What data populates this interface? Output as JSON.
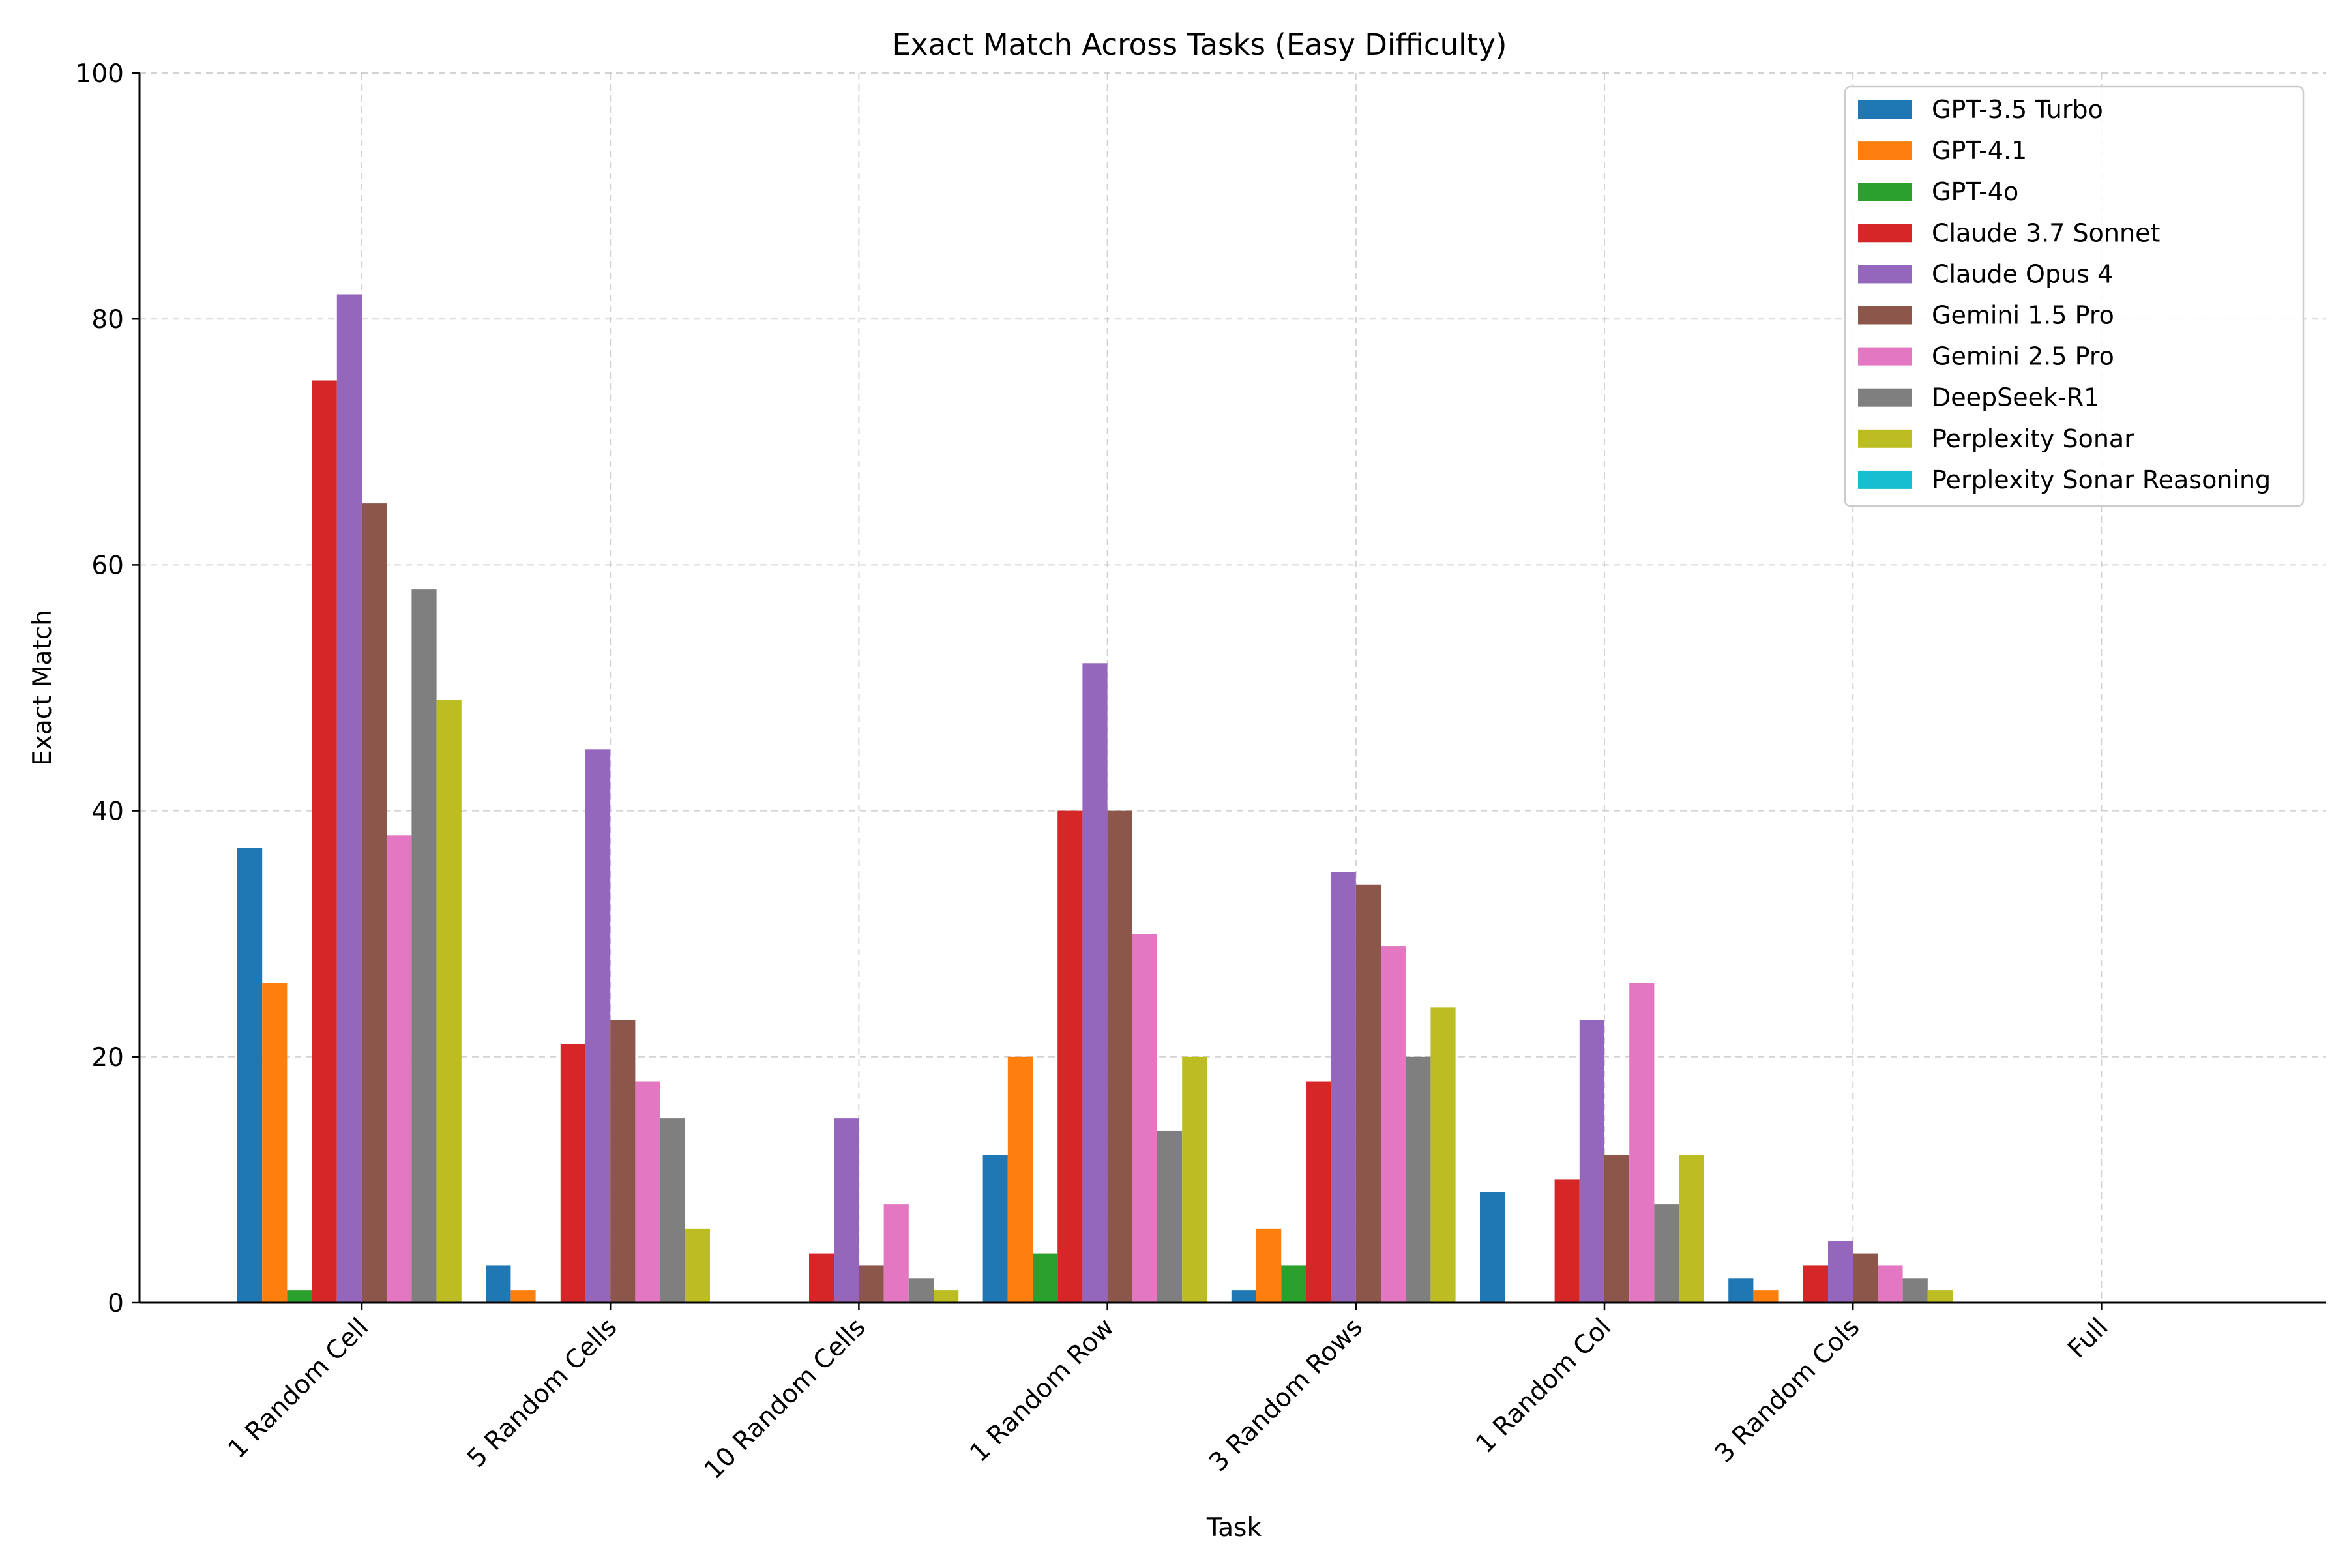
{
  "chart_data": {
    "type": "bar",
    "title": "Exact Match Across Tasks (Easy Difficulty)",
    "xlabel": "Task",
    "ylabel": "Exact Match",
    "ylim": [
      0,
      100
    ],
    "yticks": [
      "0",
      "20",
      "40",
      "60",
      "80",
      "100"
    ],
    "grid": true,
    "legend_position": "top-right",
    "categories": [
      "1 Random Cell",
      "5 Random Cells",
      "10 Random Cells",
      "1 Random Row",
      "3 Random Rows",
      "1 Random Col",
      "3 Random Cols",
      "Full"
    ],
    "series": [
      {
        "name": "GPT-3.5 Turbo",
        "color": "#1f77b4",
        "values": [
          37,
          3,
          0,
          12,
          1,
          9,
          2,
          0
        ]
      },
      {
        "name": "GPT-4.1",
        "color": "#ff7f0e",
        "values": [
          26,
          1,
          0,
          20,
          6,
          0,
          1,
          0
        ]
      },
      {
        "name": "GPT-4o",
        "color": "#2ca02c",
        "values": [
          1,
          0,
          0,
          4,
          3,
          0,
          0,
          0
        ]
      },
      {
        "name": "Claude 3.7 Sonnet",
        "color": "#d62728",
        "values": [
          75,
          21,
          4,
          40,
          18,
          10,
          3,
          0
        ]
      },
      {
        "name": "Claude Opus 4",
        "color": "#9467bd",
        "values": [
          82,
          45,
          15,
          52,
          35,
          23,
          5,
          0
        ]
      },
      {
        "name": "Gemini 1.5 Pro",
        "color": "#8c564b",
        "values": [
          65,
          23,
          3,
          40,
          34,
          12,
          4,
          0
        ]
      },
      {
        "name": "Gemini 2.5 Pro",
        "color": "#e377c2",
        "values": [
          38,
          18,
          8,
          30,
          29,
          26,
          3,
          0
        ]
      },
      {
        "name": "DeepSeek-R1",
        "color": "#7f7f7f",
        "values": [
          58,
          15,
          2,
          14,
          20,
          8,
          2,
          0
        ]
      },
      {
        "name": "Perplexity Sonar",
        "color": "#bcbd22",
        "values": [
          49,
          6,
          1,
          20,
          24,
          12,
          1,
          0
        ]
      },
      {
        "name": "Perplexity Sonar Reasoning",
        "color": "#17becf",
        "values": [
          0,
          0,
          0,
          0,
          0,
          0,
          0,
          0
        ]
      }
    ]
  }
}
